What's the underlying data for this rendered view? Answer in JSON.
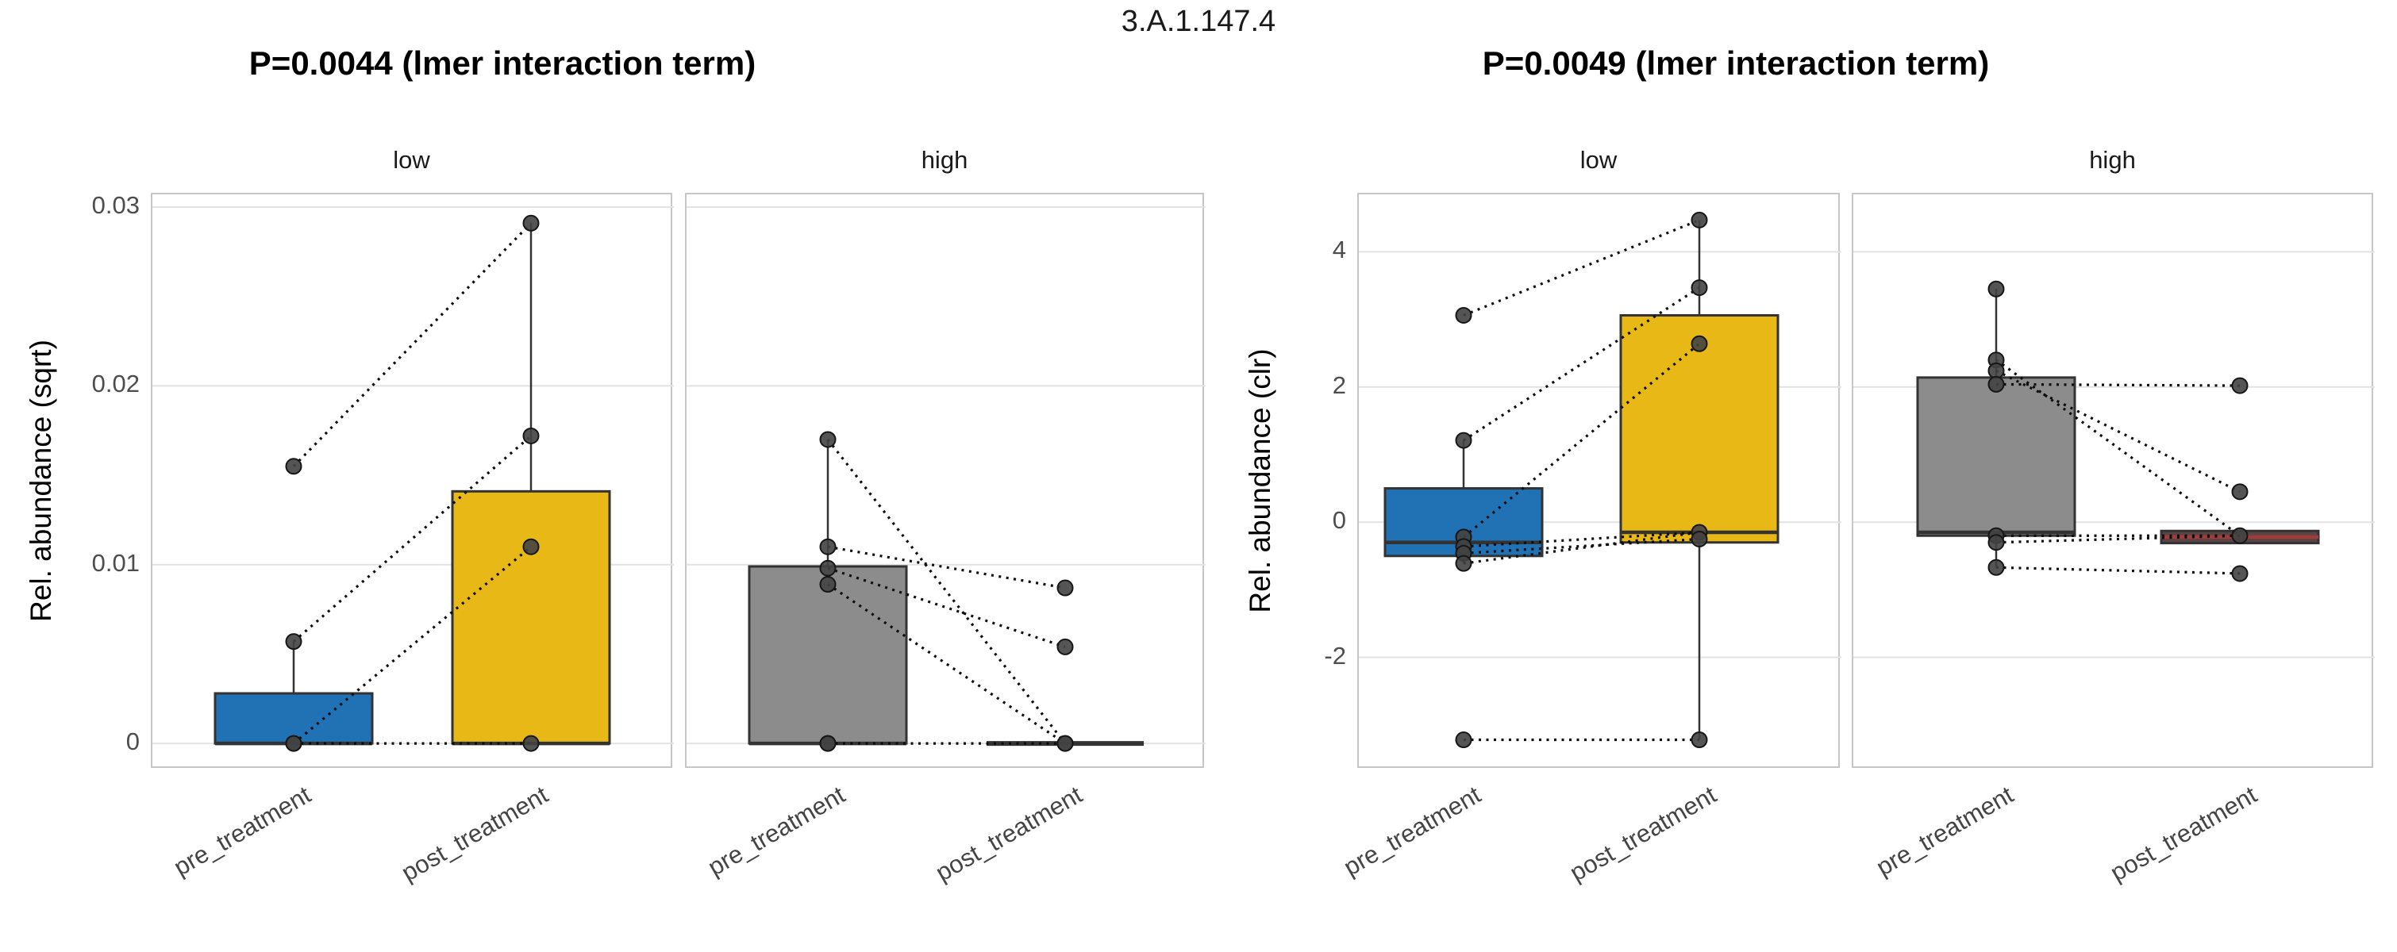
{
  "main_title": "3.A.1.147.4",
  "chart_data": {
    "type": "boxplot",
    "layout_note": "two faceted panels per figure, paired observations joined by dotted lines",
    "figures": [
      {
        "title": "P=0.0044 (lmer interaction term)",
        "ylabel": "Rel. abundance (sqrt)",
        "ylim": [
          -0.00146,
          0.03071
        ],
        "yticks": [
          0,
          0.01,
          0.02,
          0.03
        ],
        "ytick_labels": [
          "0",
          "0.01",
          "0.02",
          "0.03"
        ],
        "x_categories": [
          "pre_treatment",
          "post_treatment"
        ],
        "facets": [
          {
            "label": "low",
            "groups": [
              {
                "x": "pre_treatment",
                "fill": "#2171b5",
                "q1": 0,
                "median": 0,
                "q3": 0.0028,
                "whisker_hi": 0.0057,
                "points": [
                  0.0155,
                  0.0057,
                  0,
                  0
                ]
              },
              {
                "x": "post_treatment",
                "fill": "#e7b816",
                "q1": 0,
                "median": 0,
                "q3": 0.0141,
                "whisker_hi": 0.0291,
                "points": [
                  0.0291,
                  0.0172,
                  0.011,
                  0
                ]
              }
            ],
            "pairs": [
              [
                0.0155,
                0.0291
              ],
              [
                0.0057,
                0.0172
              ],
              [
                0,
                0.011
              ],
              [
                0,
                0
              ]
            ]
          },
          {
            "label": "high",
            "groups": [
              {
                "x": "pre_treatment",
                "fill": "#8c8c8c",
                "q1": 0,
                "median": 0,
                "q3": 0.0099,
                "whisker_hi": 0.017,
                "points": [
                  0.017,
                  0.011,
                  0.0098,
                  0.0089,
                  0,
                  0
                ]
              },
              {
                "x": "post_treatment",
                "fill": "#8c8c8c",
                "q1": 0,
                "median": 0,
                "q3": 0,
                "points": [
                  0.0087,
                  0.0054,
                  0,
                  0
                ]
              }
            ],
            "pairs": [
              [
                0.017,
                0
              ],
              [
                0.011,
                0.0087
              ],
              [
                0.0098,
                0.0054
              ],
              [
                0.0089,
                0
              ],
              [
                0,
                0
              ]
            ]
          }
        ]
      },
      {
        "title": "P=0.0049 (lmer interaction term)",
        "ylabel": "Rel. abundance (clr)",
        "ylim": [
          -3.66,
          4.85
        ],
        "yticks": [
          -2,
          0,
          2,
          4
        ],
        "ytick_labels": [
          "-2",
          "0",
          "2",
          "4"
        ],
        "x_categories": [
          "pre_treatment",
          "post_treatment"
        ],
        "facets": [
          {
            "label": "low",
            "groups": [
              {
                "x": "pre_treatment",
                "fill": "#2171b5",
                "q1": -0.5,
                "median": -0.3,
                "q3": 0.5,
                "whisker_hi": 1.21,
                "whisker_lo": -0.61,
                "points": [
                  3.06,
                  1.21,
                  -0.22,
                  -0.36,
                  -0.46,
                  -0.61,
                  -3.22
                ]
              },
              {
                "x": "post_treatment",
                "fill": "#e7b816",
                "q1": -0.3,
                "median": -0.15,
                "q3": 3.06,
                "whisker_hi": 4.47,
                "whisker_lo": -3.22,
                "points": [
                  4.47,
                  3.47,
                  2.64,
                  -0.15,
                  -0.25,
                  -3.22
                ]
              }
            ],
            "pairs": [
              [
                3.06,
                4.47
              ],
              [
                1.21,
                3.47
              ],
              [
                -0.22,
                2.64
              ],
              [
                -0.36,
                -0.15
              ],
              [
                -0.46,
                -0.25
              ],
              [
                -0.61,
                -0.15
              ],
              [
                -3.22,
                -3.22
              ]
            ]
          },
          {
            "label": "high",
            "groups": [
              {
                "x": "pre_treatment",
                "fill": "#8c8c8c",
                "q1": -0.2,
                "median": -0.15,
                "q3": 2.14,
                "whisker_hi": 3.45,
                "whisker_lo": -0.67,
                "points": [
                  3.45,
                  2.4,
                  2.24,
                  2.04,
                  -0.2,
                  -0.3,
                  -0.67
                ]
              },
              {
                "x": "post_treatment",
                "fill": "#5a4444",
                "median_color": "#a03c3c",
                "q1": -0.31,
                "median": -0.22,
                "q3": -0.13,
                "points": [
                  2.02,
                  0.45,
                  -0.2,
                  -0.76
                ]
              }
            ],
            "pairs": [
              [
                2.4,
                -0.2
              ],
              [
                2.24,
                0.45
              ],
              [
                2.04,
                2.02
              ],
              [
                -0.2,
                -0.2
              ],
              [
                -0.3,
                -0.2
              ],
              [
                -0.67,
                -0.76
              ]
            ]
          }
        ]
      }
    ]
  },
  "colors": {
    "box_border": "#333333",
    "median": "#333333",
    "point_fill": "#424242",
    "point_stroke": "#161616",
    "pair_line": "#0d0d0d",
    "gridline": "#e3e3e3",
    "panel_border": "#c6c6c6",
    "panel_bg": "#ffffff",
    "tick_text": "#4d4d4d",
    "axis_text": "#444444",
    "title_text": "#000000"
  }
}
